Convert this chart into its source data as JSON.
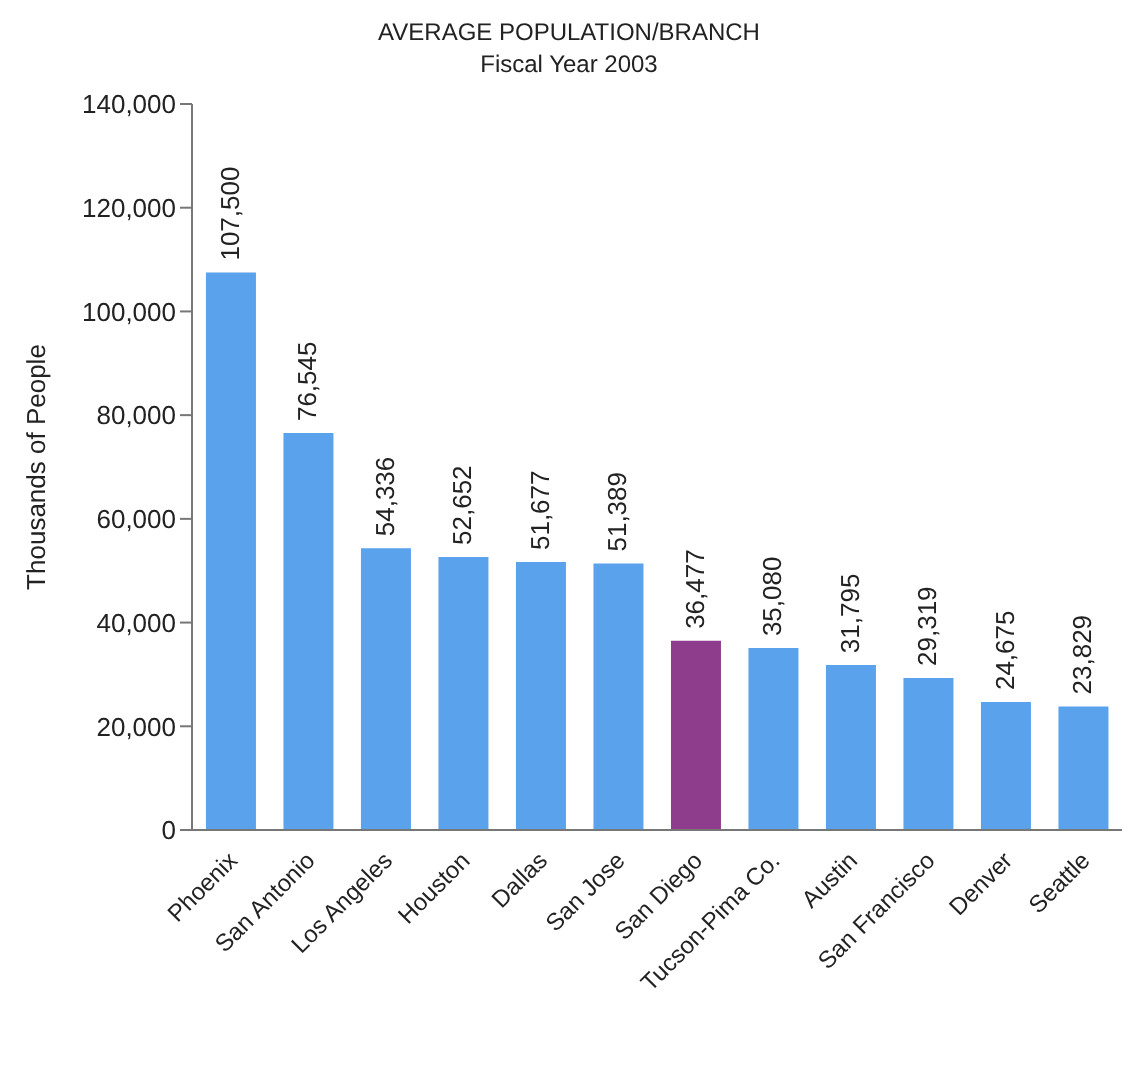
{
  "chart_data": {
    "type": "bar",
    "title": "AVERAGE POPULATION/BRANCH",
    "subtitle": "Fiscal Year 2003",
    "ylabel": "Thousands of People",
    "categories": [
      "Phoenix",
      "San Antonio",
      "Los Angeles",
      "Houston",
      "Dallas",
      "San Jose",
      "San Diego",
      "Tucson-Pima Co.",
      "Austin",
      "San Francisco",
      "Denver",
      "Seattle"
    ],
    "values": [
      107500,
      76545,
      54336,
      52652,
      51677,
      51389,
      36477,
      35080,
      31795,
      29319,
      24675,
      23829
    ],
    "value_labels": [
      "107,500",
      "76,545",
      "54,336",
      "52,652",
      "51,677",
      "51,389",
      "36,477",
      "35,080",
      "31,795",
      "29,319",
      "24,675",
      "23,829"
    ],
    "colors": [
      "#5aa2ec",
      "#5aa2ec",
      "#5aa2ec",
      "#5aa2ec",
      "#5aa2ec",
      "#5aa2ec",
      "#8e3c8c",
      "#5aa2ec",
      "#5aa2ec",
      "#5aa2ec",
      "#5aa2ec",
      "#5aa2ec"
    ],
    "ylim": [
      0,
      140000
    ],
    "yticks": [
      0,
      {
        "value": 20000,
        "label": "20,000"
      },
      {
        "value": 40000,
        "label": "40,000"
      },
      {
        "value": 60000,
        "label": "60,000"
      },
      {
        "value": 80000,
        "label": "80,000"
      },
      {
        "value": 100000,
        "label": "100,000"
      },
      {
        "value": 120000,
        "label": "120,000"
      },
      {
        "value": 140000,
        "label": "140,000"
      }
    ],
    "grid": false,
    "legend": false
  }
}
